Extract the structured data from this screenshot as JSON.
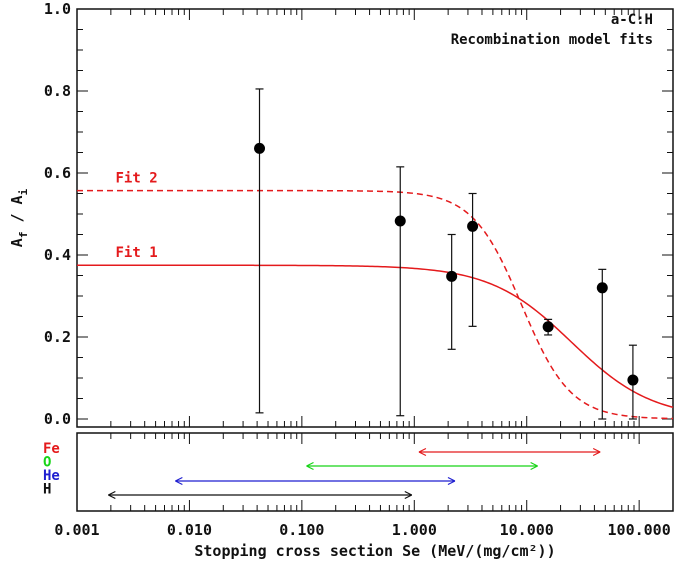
{
  "chart_data": {
    "type": "scatter",
    "annotation_material": "a-C:H",
    "annotation_title": "Recombination model fits",
    "xlabel": "Stopping cross section Se (MeV/(mg/cm²))",
    "ylabel_main": "A",
    "ylabel_sub_f": "f",
    "ylabel_slash": " / A",
    "ylabel_sub_i": "i",
    "x_scale": "log",
    "xlim": [
      0.001,
      200
    ],
    "ylim": [
      0,
      1.0
    ],
    "x_ticks": [
      0.001,
      0.01,
      0.1,
      1,
      10,
      100
    ],
    "x_tick_labels": [
      "0.001",
      "0.010",
      "0.100",
      "1.000",
      "10.000",
      "100.000"
    ],
    "y_ticks": [
      0,
      0.2,
      0.4,
      0.6,
      0.8,
      1.0
    ],
    "y_tick_labels": [
      "0.0",
      "0.2",
      "0.4",
      "0.6",
      "0.8",
      "1.0"
    ],
    "points": [
      {
        "x": 0.042,
        "y": 0.66,
        "err_low": 0.015,
        "err_high": 0.805
      },
      {
        "x": 0.75,
        "y": 0.483,
        "err_low": 0.008,
        "err_high": 0.615
      },
      {
        "x": 2.15,
        "y": 0.348,
        "err_low": 0.17,
        "err_high": 0.45
      },
      {
        "x": 3.3,
        "y": 0.47,
        "err_low": 0.226,
        "err_high": 0.55
      },
      {
        "x": 15.5,
        "y": 0.225,
        "err_low": 0.205,
        "err_high": 0.243
      },
      {
        "x": 47,
        "y": 0.32,
        "err_low": 0.0,
        "err_high": 0.365
      },
      {
        "x": 88,
        "y": 0.095,
        "err_low": 0.0,
        "err_high": 0.18
      }
    ],
    "fits": [
      {
        "name": "Fit 1",
        "A0": 0.375,
        "S0": 25,
        "n": 1.2,
        "style": "solid",
        "color": "#e41a1c",
        "label_x": 0.0022,
        "label_y": 0.395
      },
      {
        "name": "Fit 2",
        "A0": 0.557,
        "S0": 9,
        "n": 2.0,
        "style": "dashed",
        "color": "#e41a1c",
        "label_x": 0.0022,
        "label_y": 0.577
      }
    ],
    "ion_ranges": [
      {
        "ion": "Fe",
        "color": "#e41a1c",
        "x_min": 1.1,
        "x_max": 45
      },
      {
        "ion": "O",
        "color": "#17d417",
        "x_min": 0.11,
        "x_max": 12.5
      },
      {
        "ion": "He",
        "color": "#1f1fd0",
        "x_min": 0.0075,
        "x_max": 2.3
      },
      {
        "ion": "H",
        "color": "#111111",
        "x_min": 0.0019,
        "x_max": 0.95
      }
    ]
  }
}
